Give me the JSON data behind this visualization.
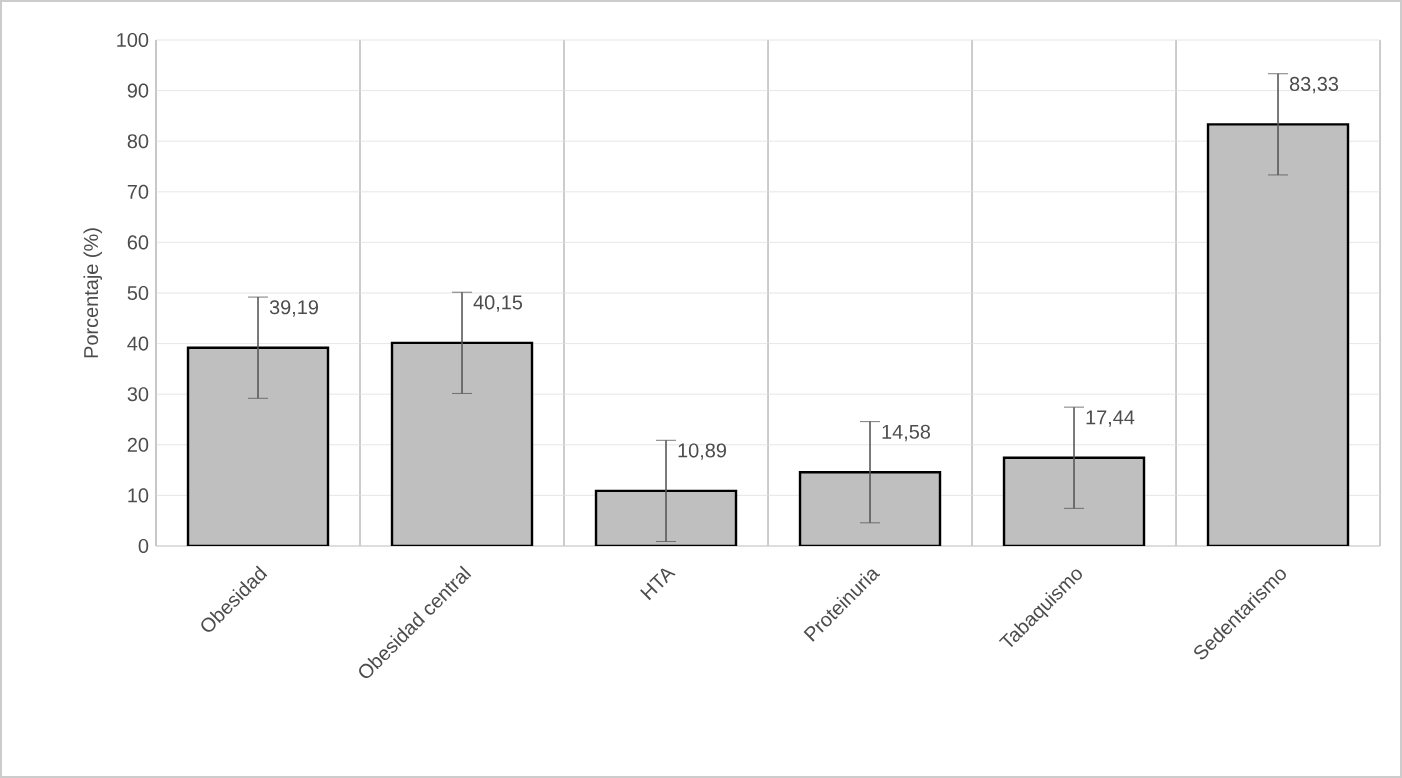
{
  "chart_data": {
    "type": "bar",
    "ylabel": "Porcentaje (%)",
    "categories": [
      "Obesidad",
      "Obesidad central",
      "HTA",
      "Proteinuria",
      "Tabaquismo",
      "Sedentarismo"
    ],
    "values": [
      39.19,
      40.15,
      10.89,
      14.58,
      17.44,
      83.33
    ],
    "value_labels": [
      "39,19",
      "40,15",
      "10,89",
      "14,58",
      "17,44",
      "83,33"
    ],
    "errors": [
      10,
      10,
      10,
      10,
      10,
      10
    ],
    "color": "#bfbfbf",
    "ylim": [
      0,
      100
    ],
    "yticks": [
      0,
      10,
      20,
      30,
      40,
      50,
      60,
      70,
      80,
      90,
      100
    ],
    "grid": true
  }
}
